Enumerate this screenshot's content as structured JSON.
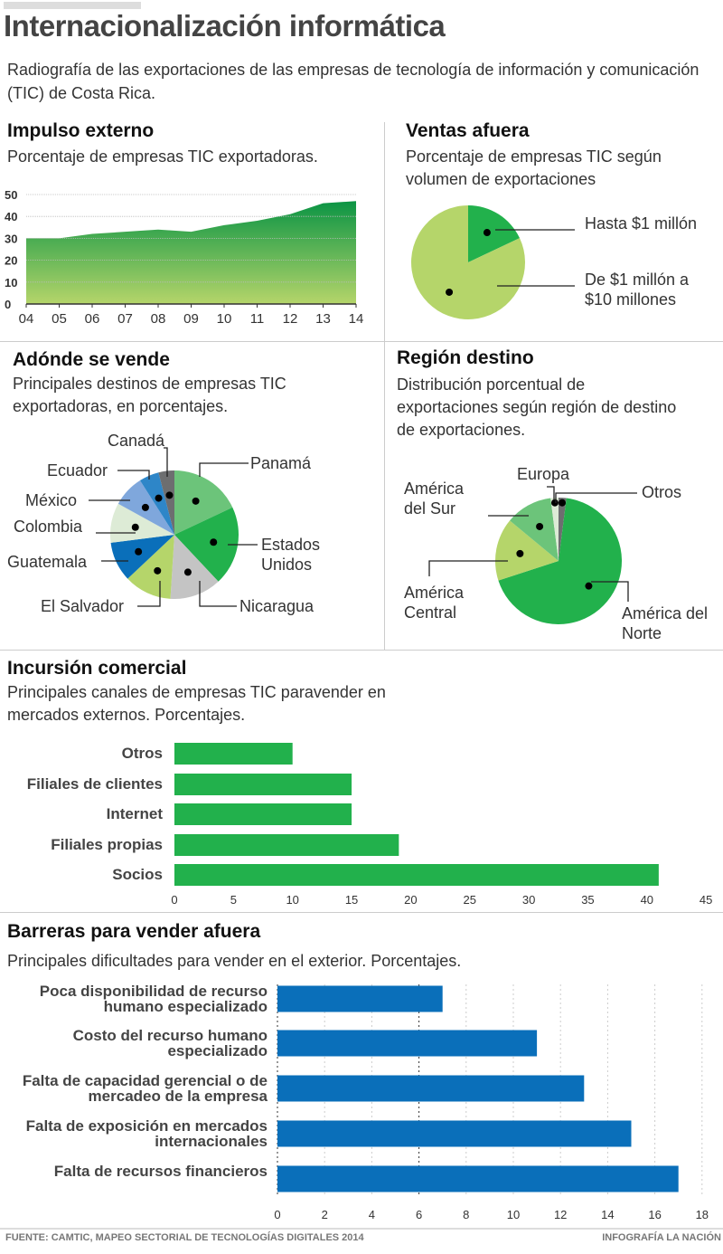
{
  "header": {
    "title": "Internacionalización informática",
    "intro": "Radiografía de las exportaciones de las empresas de tecnología de información y comunicación (TIC) de Costa Rica."
  },
  "sections": {
    "impulso": {
      "title": "Impulso externo",
      "subtitle": "Porcentaje de empresas TIC exportadoras."
    },
    "ventas": {
      "title": "Ventas afuera",
      "subtitle": "Porcentaje de empresas TIC según volumen de exportaciones"
    },
    "adonde": {
      "title": "Adónde se vende",
      "subtitle": "Principales destinos de empresas TIC exportadoras, en porcentajes."
    },
    "region": {
      "title": "Región destino",
      "subtitle": "Distribución porcentual de exportaciones según región de destino de exportaciones."
    },
    "incursion": {
      "title": "Incursión comercial",
      "subtitle": "Principales canales de empresas TIC paravender en mercados externos. Porcentajes."
    },
    "barreras": {
      "title": "Barreras para vender afuera",
      "subtitle": "Principales dificultades para vender en el exterior. Porcentajes."
    }
  },
  "footer": {
    "source": "FUENTE: CAMTIC, MAPEO SECTORIAL DE TECNOLOGÍAS DIGITALES 2014",
    "credit": "INFOGRAFÍA LA NACIÓN"
  },
  "chart_data": [
    {
      "id": "impulso",
      "type": "area",
      "x": [
        "04",
        "05",
        "06",
        "07",
        "08",
        "09",
        "10",
        "11",
        "12",
        "13",
        "14"
      ],
      "values": [
        30,
        30,
        32,
        33,
        34,
        33,
        36,
        38,
        41,
        46,
        47
      ],
      "ylim": [
        0,
        50
      ],
      "yticks": [
        "0",
        "10",
        "20",
        "30",
        "40",
        "50"
      ],
      "colors": {
        "top": "#0b9444",
        "bottom": "#b5d56a"
      }
    },
    {
      "id": "ventas",
      "type": "pie",
      "slices": [
        {
          "label": "Hasta $1 millón",
          "value": 18,
          "color": "#22b14c"
        },
        {
          "label": "De $1 millón a $10 millones",
          "value": 82,
          "color": "#b5d56a"
        }
      ]
    },
    {
      "id": "adonde",
      "type": "pie",
      "slices": [
        {
          "label": "Panamá",
          "value": 18,
          "color": "#6cc47a"
        },
        {
          "label": "Estados Unidos",
          "value": 20,
          "color": "#22b14c"
        },
        {
          "label": "Nicaragua",
          "value": 13,
          "color": "#c4c4c4"
        },
        {
          "label": "El Salvador",
          "value": 12,
          "color": "#b5d56a"
        },
        {
          "label": "Guatemala",
          "value": 10,
          "color": "#0a6fba"
        },
        {
          "label": "Colombia",
          "value": 10,
          "color": "#ddebd6"
        },
        {
          "label": "México",
          "value": 8,
          "color": "#7fa7dc"
        },
        {
          "label": "Ecuador",
          "value": 5,
          "color": "#2e86c8"
        },
        {
          "label": "Canadá",
          "value": 4,
          "color": "#6d6e70"
        }
      ]
    },
    {
      "id": "region",
      "type": "pie",
      "slices": [
        {
          "label": "Otros",
          "value": 2,
          "color": "#6d6e70"
        },
        {
          "label": "América del Norte",
          "value": 68,
          "color": "#22b14c"
        },
        {
          "label": "América Central",
          "value": 16,
          "color": "#b5d56a"
        },
        {
          "label": "América del Sur",
          "value": 12,
          "color": "#6cc47a"
        },
        {
          "label": "Europa",
          "value": 2,
          "color": "#ddebd6"
        }
      ]
    },
    {
      "id": "incursion",
      "type": "bar",
      "orientation": "horizontal",
      "categories": [
        "Otros",
        "Filiales de clientes",
        "Internet",
        "Filiales propias",
        "Socios"
      ],
      "values": [
        10,
        15,
        15,
        19,
        41
      ],
      "xlim": [
        0,
        45
      ],
      "xticks": [
        "0",
        "5",
        "10",
        "15",
        "20",
        "25",
        "30",
        "35",
        "40",
        "45"
      ],
      "color": "#22b14c"
    },
    {
      "id": "barreras",
      "type": "bar",
      "orientation": "horizontal",
      "categories": [
        "Poca disponibilidad de recurso humano especializado",
        "Costo del recurso humano especializado",
        "Falta de capacidad gerencial o de mercadeo de la empresa",
        "Falta de exposición en mercados internacionales",
        "Falta de recursos financieros"
      ],
      "values": [
        7,
        11,
        13,
        15,
        17
      ],
      "xlim": [
        0,
        18
      ],
      "xticks": [
        "0",
        "2",
        "4",
        "6",
        "8",
        "10",
        "12",
        "14",
        "16",
        "18"
      ],
      "color": "#0a6fba"
    }
  ]
}
